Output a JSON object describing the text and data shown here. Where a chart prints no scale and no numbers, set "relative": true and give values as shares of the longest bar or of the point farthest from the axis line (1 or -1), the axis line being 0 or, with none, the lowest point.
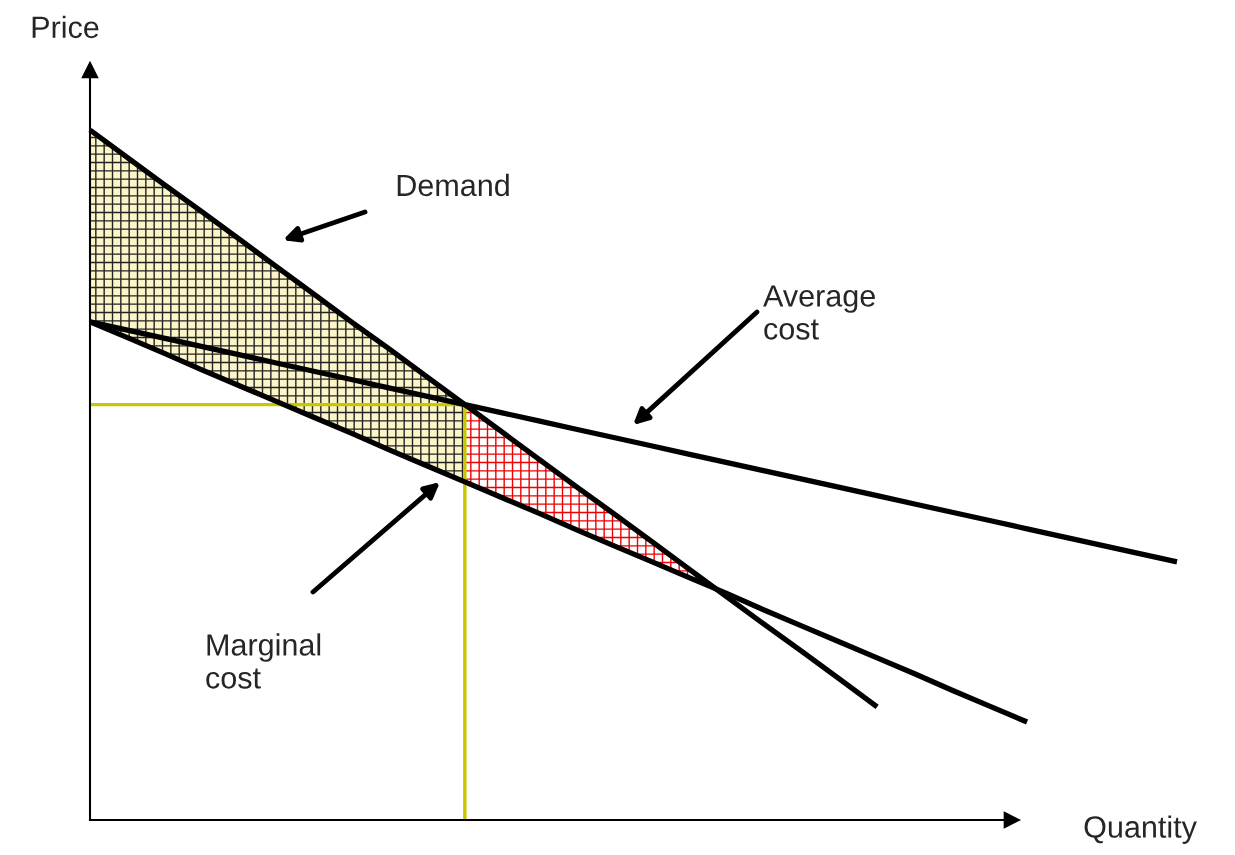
{
  "chart_data": {
    "type": "line",
    "relative": true,
    "xlabel": "Quantity",
    "ylabel": "Price",
    "marker": "none",
    "line_style": "solid",
    "categories": [
      null,
      null,
      null,
      null,
      null,
      null,
      null,
      null,
      null,
      null,
      null,
      null,
      null,
      null,
      null,
      null,
      null,
      null,
      null,
      null,
      null,
      null,
      null,
      null,
      null,
      null,
      null,
      null,
      null,
      null
    ],
    "series": [
      {
        "color": "#000000",
        "values": [
          1,
          0.96,
          0.92,
          0.881,
          0.841,
          0.801,
          0.761,
          0.721,
          0.682,
          0.642,
          0.602,
          0.562,
          0.522,
          0.482,
          0.443,
          0.403,
          0.363,
          0.323,
          0.283,
          0.244,
          0.204,
          0.164,
          null,
          null,
          null,
          null,
          null,
          null,
          null,
          null
        ]
      },
      {
        "color": "#000000",
        "values": [
          0.722,
          0.71,
          0.698,
          0.686,
          0.674,
          0.662,
          0.65,
          0.638,
          0.626,
          0.614,
          0.602,
          0.59,
          0.578,
          0.566,
          0.554,
          0.542,
          0.53,
          0.518,
          0.506,
          0.494,
          0.482,
          0.47,
          0.458,
          0.446,
          0.434,
          0.422,
          0.41,
          0.398,
          0.386,
          0.374
        ]
      },
      {
        "color": "#000000",
        "values": [
          0.722,
          0.699,
          0.676,
          0.652,
          0.629,
          0.606,
          0.583,
          0.56,
          0.536,
          0.513,
          0.49,
          0.467,
          0.444,
          0.42,
          0.397,
          0.374,
          0.351,
          0.328,
          0.304,
          0.281,
          0.258,
          0.235,
          0.212,
          0.188,
          0.165,
          0.142,
          null,
          null,
          null,
          null
        ]
      }
    ],
    "ref_lines": [
      {
        "axis": "y",
        "value": 0.602,
        "color": "#c8c800"
      }
    ],
    "annotations": [
      "Demand",
      "Average\ncost",
      "Marginal\ncost"
    ]
  }
}
